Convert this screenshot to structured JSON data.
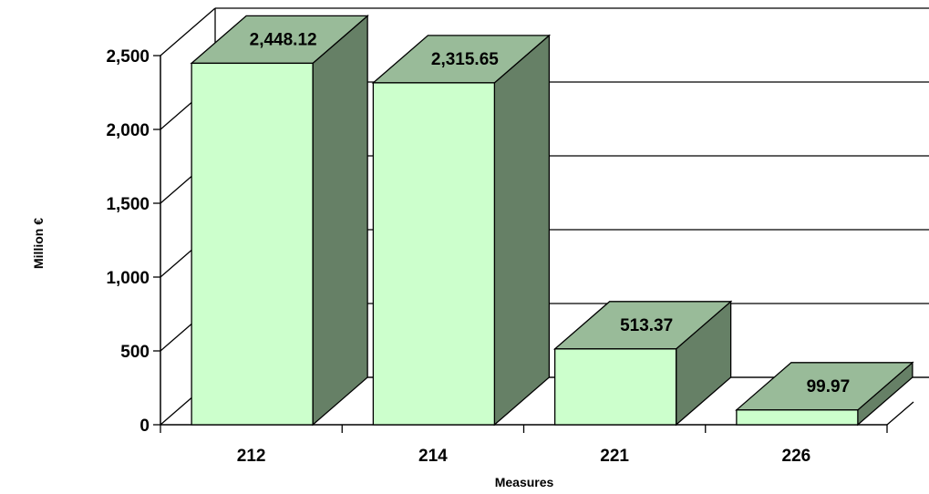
{
  "chart_data": {
    "type": "bar",
    "style": "3d-column",
    "categories": [
      "212",
      "214",
      "221",
      "226"
    ],
    "values": [
      2448.12,
      2315.65,
      513.37,
      99.97
    ],
    "data_labels": [
      "2,448.12",
      "2,315.65",
      "513.37",
      "99.97"
    ],
    "title": "",
    "xlabel": "Measures",
    "ylabel": "Million €",
    "ylim": [
      0,
      2500
    ],
    "yticks": [
      0,
      500,
      1000,
      1500,
      2000,
      2500
    ],
    "ytick_labels": [
      "0",
      "500",
      "1,000",
      "1,500",
      "2,000",
      "2,500"
    ],
    "grid": true,
    "legend": "none",
    "colors": {
      "bar_front": "#CCFFCC",
      "bar_top": "#99BB99",
      "bar_side": "#668066",
      "lines": "#000000",
      "background": "#FFFFFF"
    }
  }
}
